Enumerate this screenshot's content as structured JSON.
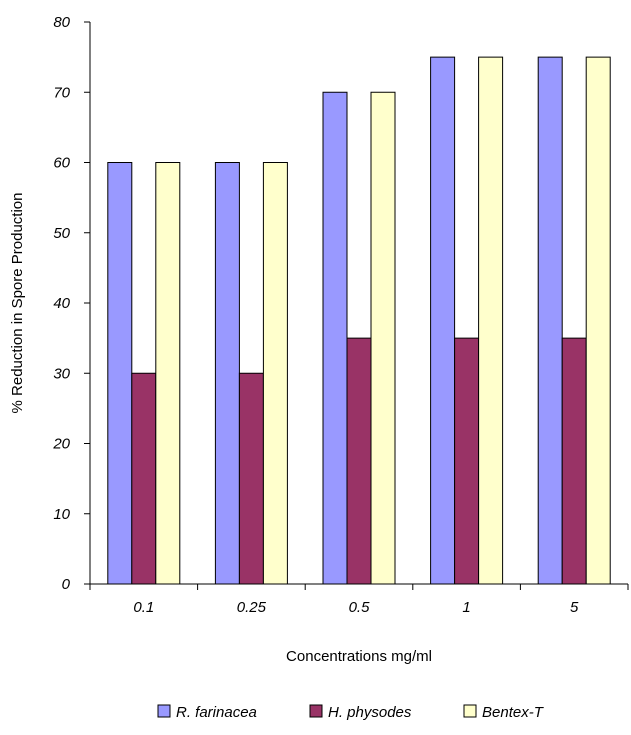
{
  "chart_data": {
    "type": "bar",
    "categories": [
      "0.1",
      "0.25",
      "0.5",
      "1",
      "5"
    ],
    "series": [
      {
        "name": "R. farinacea",
        "color": "#9999FF",
        "values": [
          60,
          60,
          70,
          75,
          75
        ]
      },
      {
        "name": "H. physodes",
        "color": "#993366",
        "values": [
          30,
          30,
          35,
          35,
          35
        ]
      },
      {
        "name": "Bentex-T",
        "color": "#FFFFCC",
        "values": [
          60,
          60,
          70,
          75,
          75
        ]
      }
    ],
    "xlabel": "Concentrations mg/ml",
    "ylabel": "% Reduction in Spore Production",
    "ylim": [
      0,
      80
    ],
    "yticks": [
      "0",
      "10",
      "20",
      "30",
      "40",
      "50",
      "60",
      "70",
      "80"
    ],
    "grid": false,
    "legend_position": "bottom"
  }
}
